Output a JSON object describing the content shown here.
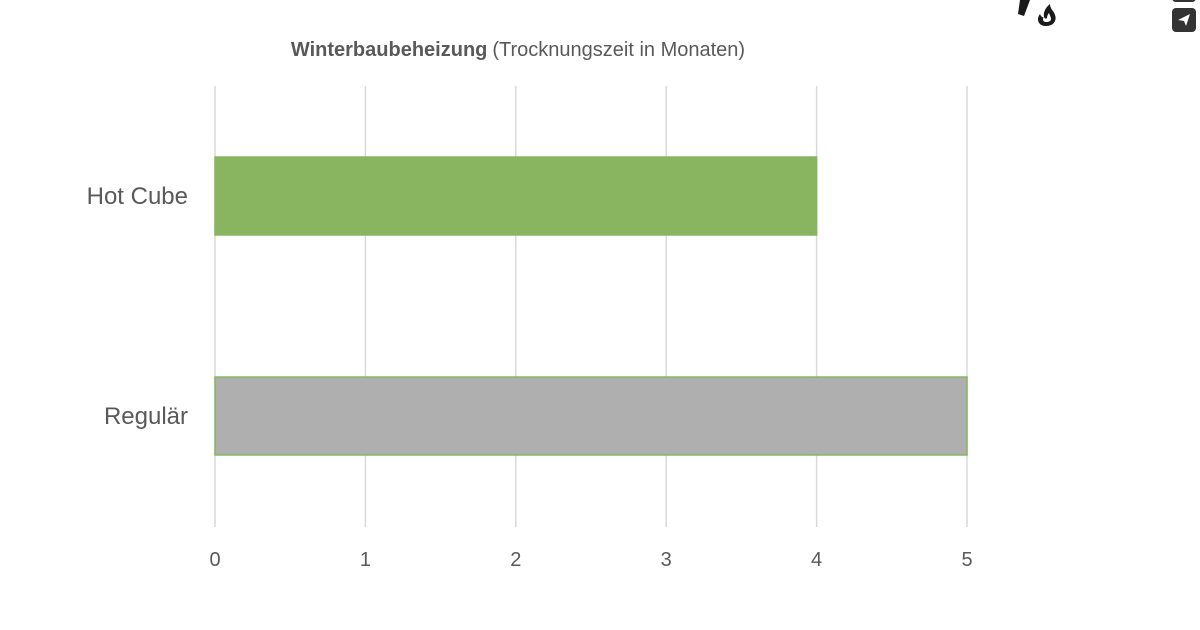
{
  "chart_data": {
    "type": "bar",
    "orientation": "horizontal",
    "title": "Winterbaubeheizung",
    "subtitle": "(Trocknungszeit  in Monaten)",
    "categories": [
      "Hot Cube",
      "Regulär"
    ],
    "values": [
      4,
      5
    ],
    "colors": [
      "#8ab560",
      "#afafaf"
    ],
    "bar_edge_color": "#8ab560",
    "xlabel": "",
    "ylabel": "",
    "xlim": [
      0,
      5
    ],
    "xticks": [
      "0",
      "1",
      "2",
      "3",
      "4",
      "5"
    ],
    "grid": "vertical",
    "legend": "none"
  },
  "overlay": {
    "logo": "flame-logo",
    "share_button": "send-icon"
  }
}
